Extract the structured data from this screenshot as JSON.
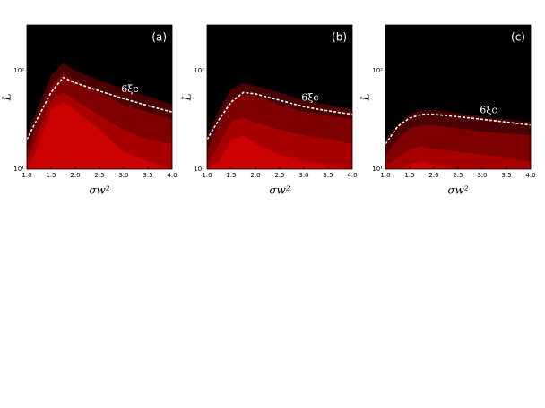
{
  "chart_data": [
    {
      "type": "contour",
      "title": "(a)",
      "xlabel": "σw²",
      "ylabel": "L",
      "annotation": "6ξc",
      "x": [
        1.0,
        1.25,
        1.5,
        1.75,
        2.0,
        2.5,
        3.0,
        3.5,
        4.0
      ],
      "levels": [
        {
          "color": "#4a0000",
          "values": [
            22,
            45,
            90,
            120,
            100,
            80,
            65,
            55,
            45
          ]
        },
        {
          "color": "#7e0000",
          "values": [
            15,
            35,
            70,
            95,
            80,
            60,
            45,
            38,
            32
          ]
        },
        {
          "color": "#a80000",
          "values": [
            12,
            25,
            50,
            60,
            50,
            35,
            25,
            20,
            18
          ]
        },
        {
          "color": "#cc0000",
          "values": [
            10,
            18,
            40,
            48,
            40,
            25,
            15,
            12,
            10
          ]
        }
      ],
      "series": [
        {
          "color": "#ffffff",
          "values": [
            20,
            35,
            60,
            85,
            75,
            62,
            52,
            44,
            38
          ]
        }
      ],
      "xlim": [
        1.0,
        4.0
      ],
      "ylim": [
        10,
        290
      ],
      "log_y": true,
      "xticks": [
        {
          "value": 1,
          "label": "1.0"
        },
        {
          "value": 1.5,
          "label": "1.5"
        },
        {
          "value": 2,
          "label": "2.0"
        },
        {
          "value": 2.5,
          "label": "2.5"
        },
        {
          "value": 3,
          "label": "3.0"
        },
        {
          "value": 3.5,
          "label": "3.5"
        },
        {
          "value": 4,
          "label": "4.0"
        }
      ],
      "yticks": [
        {
          "value": 10,
          "label": "10¹"
        },
        {
          "value": 100,
          "label": "10²"
        }
      ]
    },
    {
      "type": "contour",
      "title": "(b)",
      "xlabel": "σw²",
      "ylabel": "L",
      "annotation": "6ξc",
      "x": [
        1.0,
        1.25,
        1.5,
        1.75,
        2.0,
        2.5,
        3.0,
        3.5,
        4.0
      ],
      "levels": [
        {
          "color": "#4a0000",
          "values": [
            22,
            40,
            65,
            75,
            70,
            60,
            50,
            45,
            40
          ]
        },
        {
          "color": "#7e0000",
          "values": [
            15,
            30,
            50,
            58,
            55,
            45,
            38,
            35,
            32
          ]
        },
        {
          "color": "#a80000",
          "values": [
            11,
            18,
            30,
            33,
            30,
            25,
            22,
            20,
            18
          ]
        },
        {
          "color": "#cc0000",
          "values": [
            10,
            12,
            20,
            22,
            18,
            14,
            12,
            11,
            10
          ]
        }
      ],
      "series": [
        {
          "color": "#ffffff",
          "values": [
            20,
            32,
            48,
            60,
            58,
            50,
            43,
            39,
            36
          ]
        }
      ],
      "xlim": [
        1.0,
        4.0
      ],
      "ylim": [
        10,
        290
      ],
      "log_y": true,
      "xticks": [
        {
          "value": 1,
          "label": "1.0"
        },
        {
          "value": 1.5,
          "label": "1.5"
        },
        {
          "value": 2,
          "label": "2.0"
        },
        {
          "value": 2.5,
          "label": "2.5"
        },
        {
          "value": 3,
          "label": "3.0"
        },
        {
          "value": 3.5,
          "label": "3.5"
        },
        {
          "value": 4,
          "label": "4.0"
        }
      ],
      "yticks": [
        {
          "value": 10,
          "label": "10¹"
        },
        {
          "value": 100,
          "label": "10²"
        }
      ]
    },
    {
      "type": "contour",
      "title": "(c)",
      "xlabel": "σw²",
      "ylabel": "L",
      "annotation": "6ξc",
      "x": [
        1.0,
        1.25,
        1.5,
        1.75,
        2.0,
        2.5,
        3.0,
        3.5,
        4.0
      ],
      "levels": [
        {
          "color": "#4a0000",
          "values": [
            20,
            28,
            36,
            40,
            40,
            37,
            34,
            32,
            30
          ]
        },
        {
          "color": "#7e0000",
          "values": [
            14,
            20,
            26,
            28,
            28,
            26,
            24,
            23,
            22
          ]
        },
        {
          "color": "#a80000",
          "values": [
            11,
            13,
            16,
            17,
            16,
            15,
            14,
            13,
            12
          ]
        },
        {
          "color": "#cc0000",
          "values": [
            10,
            10,
            11,
            12,
            11,
            10,
            10,
            10,
            10
          ]
        }
      ],
      "series": [
        {
          "color": "#ffffff",
          "values": [
            18,
            27,
            33,
            36,
            36,
            34,
            32,
            30,
            28
          ]
        }
      ],
      "xlim": [
        1.0,
        4.0
      ],
      "ylim": [
        10,
        290
      ],
      "log_y": true,
      "xticks": [
        {
          "value": 1,
          "label": "1.0"
        },
        {
          "value": 1.5,
          "label": "1.5"
        },
        {
          "value": 2,
          "label": "2.0"
        },
        {
          "value": 2.5,
          "label": "2.5"
        },
        {
          "value": 3,
          "label": "3.0"
        },
        {
          "value": 3.5,
          "label": "3.5"
        },
        {
          "value": 4,
          "label": "4.0"
        }
      ],
      "yticks": [
        {
          "value": 10,
          "label": "10¹"
        },
        {
          "value": 100,
          "label": "10²"
        }
      ]
    }
  ]
}
